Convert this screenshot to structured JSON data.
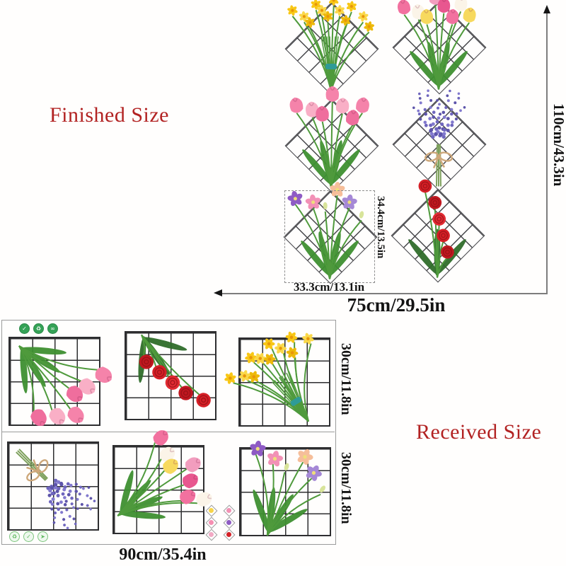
{
  "finished": {
    "title": "Finished Size",
    "width_label": "75cm/29.5in",
    "height_label": "110cm/43.3in",
    "sticker_width_label": "33.3cm/13.1in",
    "sticker_height_label": "34.4cm/13.5in",
    "panels": [
      {
        "name": "yellow-daffodil-bouquet",
        "head": "daffodil",
        "heads": 12,
        "scale": 0.85,
        "rot": 0,
        "tie": "#2E9B97",
        "colors": [
          "#F8C716",
          "#FAD84A",
          "#EDB90B"
        ]
      },
      {
        "name": "mixed-tulip-bouquet",
        "head": "tulip",
        "heads": 8,
        "scale": 1.15,
        "rot": 0,
        "colors": [
          "#F2719F",
          "#FBF4E8",
          "#F7D95E",
          "#F29DBE",
          "#E8578F"
        ]
      },
      {
        "name": "pink-tulip-bouquet",
        "head": "tulip",
        "heads": 7,
        "scale": 1.2,
        "rot": 0,
        "colors": [
          "#F583AA",
          "#F9AFC6",
          "#EF6E9D"
        ]
      },
      {
        "name": "lavender-bouquet",
        "head": "lavender",
        "rot": 0,
        "tie": "#CDA77A",
        "colors": [
          "#6F66BE",
          "#8279CE",
          "#5D54AA"
        ]
      },
      {
        "name": "lisianthus-mixed-bouquet",
        "head": "open",
        "heads": 6,
        "scale": 1.0,
        "rot": 0,
        "colors": [
          "#8E5BC4",
          "#F291B6",
          "#F2E9C8",
          "#F6BE9A",
          "#A588D6",
          "#FFFFFF"
        ]
      },
      {
        "name": "red-rose-stem",
        "head": "rose",
        "heads": 5,
        "scale": 1.1,
        "rot": 0,
        "chain": true,
        "colors": [
          "#D51F26",
          "#C01820",
          "#E12B32"
        ]
      }
    ]
  },
  "received": {
    "title": "Received Size",
    "width_label": "90cm/35.4in",
    "row_height_labels": [
      "30cm/11.8in",
      "30cm/11.8in"
    ],
    "rows": [
      [
        {
          "name": "pink-tulip-bouquet",
          "head": "tulip",
          "heads": 6,
          "scale": 1.35,
          "rot": 135,
          "colors": [
            "#F583AA",
            "#F9AFC6",
            "#EF6E9D"
          ]
        },
        {
          "name": "red-rose-bouquet",
          "head": "rose",
          "heads": 5,
          "scale": 1.2,
          "rot": 145,
          "chain": true,
          "colors": [
            "#D51F26",
            "#C01820",
            "#E12B32"
          ]
        },
        {
          "name": "yellow-daffodil-bouquet",
          "head": "daffodil",
          "heads": 11,
          "scale": 0.95,
          "rot": -32,
          "tie": "#2E9B97",
          "colors": [
            "#F8C716",
            "#FAD84A",
            "#EDB90B"
          ]
        }
      ],
      [
        {
          "name": "lavender-bouquet",
          "head": "lavender",
          "rot": 135,
          "tie": "#CDA77A",
          "colors": [
            "#6F66BE",
            "#8279CE",
            "#5D54AA"
          ]
        },
        {
          "name": "mixed-tulip-bouquet",
          "head": "tulip",
          "heads": 7,
          "scale": 1.25,
          "rot": 55,
          "colors": [
            "#F2719F",
            "#FBF4E8",
            "#F7D95E",
            "#F29DBE",
            "#E8578F"
          ]
        },
        {
          "name": "lisianthus-mixed-bouquet",
          "head": "open",
          "heads": 6,
          "scale": 1.05,
          "rot": 20,
          "colors": [
            "#8E5BC4",
            "#F291B6",
            "#F2E9C8",
            "#F6BE9A",
            "#A588D6",
            "#FFFFFF"
          ]
        }
      ]
    ],
    "thumbnails": [
      {
        "name": "daffodil",
        "color": "#F7D44A"
      },
      {
        "name": "mixed-tulip",
        "color": "#F291B4"
      },
      {
        "name": "pink-tulip",
        "color": "#F68FB2"
      },
      {
        "name": "lavender",
        "color": "#8E5BC4"
      },
      {
        "name": "lisianthus",
        "color": "#F2A9C4"
      },
      {
        "name": "rose",
        "color": "#D42027"
      }
    ]
  },
  "badges": {
    "top": [
      {
        "glyph": "✓"
      },
      {
        "glyph": "♻"
      },
      {
        "glyph": "∞"
      }
    ],
    "bottom": [
      {
        "glyph": "♻"
      },
      {
        "glyph": "✓"
      },
      {
        "glyph": "➤"
      }
    ]
  },
  "colors": {
    "accent_red": "#B22222",
    "dimension_text": "#141414",
    "diamond_grid_line": "#47474b",
    "sheet_grid_line": "#2e2e30",
    "arrow_line": "#7d7d7d",
    "sheet_border": "#9b9b9b",
    "stem_green": "#4f9a3c"
  }
}
